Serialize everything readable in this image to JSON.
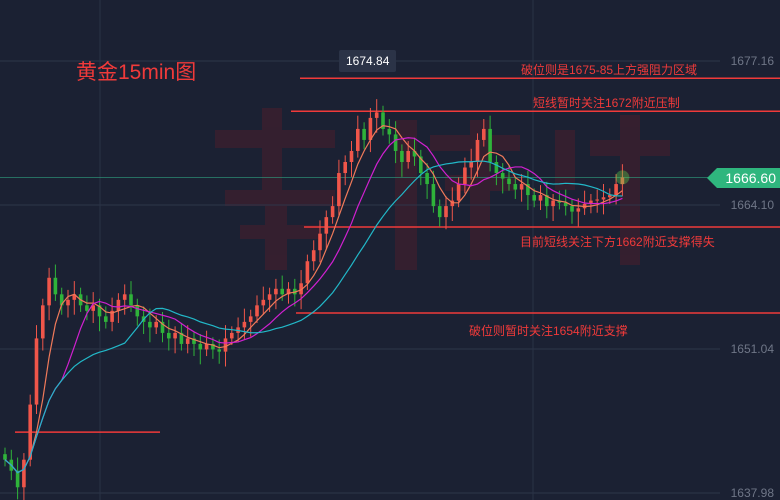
{
  "chart_data": {
    "type": "candlestick",
    "title": "黄金15min图",
    "y_ticks": [
      1677.16,
      1664.1,
      1651.04,
      1637.98
    ],
    "ylim": [
      1637.98,
      1677.16
    ],
    "current_price": "1666.60",
    "high_label": "1674.84",
    "closes": [
      1641,
      1640,
      1638.5,
      1641,
      1646,
      1652,
      1655,
      1657.5,
      1656,
      1655,
      1655.5,
      1656,
      1655,
      1654.5,
      1655,
      1654,
      1653.5,
      1654.5,
      1655.5,
      1656,
      1655,
      1654,
      1653.5,
      1653,
      1653.5,
      1652.5,
      1652,
      1652.5,
      1651.5,
      1652,
      1651.5,
      1651,
      1651.5,
      1651,
      1650.8,
      1652,
      1652.5,
      1653,
      1653.5,
      1654,
      1655,
      1655.5,
      1656,
      1656.5,
      1656,
      1656.5,
      1656,
      1657,
      1659,
      1660,
      1661.5,
      1663,
      1664,
      1667,
      1668,
      1669,
      1671,
      1670,
      1672,
      1672.5,
      1671,
      1670.5,
      1669,
      1668,
      1669,
      1668.5,
      1667,
      1666,
      1664,
      1663,
      1664,
      1664.5,
      1666,
      1667.5,
      1668,
      1670,
      1671,
      1668,
      1667,
      1666.5,
      1666,
      1665.5,
      1666,
      1665,
      1664.5,
      1665,
      1664,
      1664.5,
      1664.3,
      1664,
      1663.5,
      1663.8,
      1664.2,
      1664.5,
      1664.6,
      1664.8,
      1665,
      1666,
      1666.6
    ],
    "moving_averages": [
      {
        "period": 5,
        "color": "#f07a5a"
      },
      {
        "period": 10,
        "color": "#d020d0"
      },
      {
        "period": 20,
        "color": "#22b8c8"
      }
    ],
    "levels": [
      {
        "price": 1675.6,
        "label": "破位则是1675-85上方强阻力区域"
      },
      {
        "price": 1672.6,
        "label": "短线暂时关注1672附近压制"
      },
      {
        "price": 1662.1,
        "label": "目前短线关注下方1662附近支撑得失"
      },
      {
        "price": 1654.3,
        "label": "破位则暂时关注1654附近支撑"
      },
      {
        "price": 1643.5,
        "label": ""
      }
    ],
    "colors": {
      "up": "#f0564a",
      "down": "#2fb33a",
      "level": "#f03a3a",
      "badge": "#2fb67e"
    }
  },
  "watermark": "李"
}
